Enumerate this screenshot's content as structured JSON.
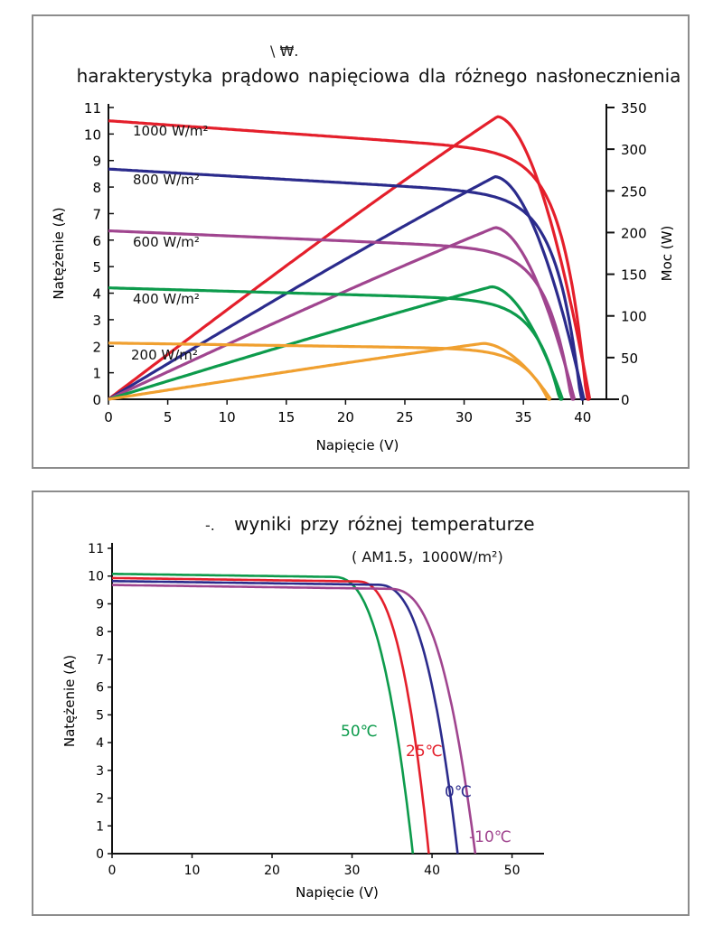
{
  "colors": {
    "red": "#e41f2b",
    "blue": "#2b2b8c",
    "purple": "#a0458f",
    "green": "#0d9b4c",
    "orange": "#f0a030"
  },
  "chart_data": [
    {
      "type": "line",
      "title": "harakterystyka prądowo napięciowa dla różnego nasłonecznienia",
      "title_fragment": "\\ ₩.",
      "xlabel": "Napięcie (V)",
      "ylabel": "Natężenie (A)",
      "y2label": "Moc (W)",
      "xlim": [
        0,
        42
      ],
      "ylim": [
        0,
        11
      ],
      "y2lim": [
        0,
        350
      ],
      "xticks": [
        0,
        5,
        10,
        15,
        20,
        25,
        30,
        35,
        40
      ],
      "yticks": [
        0,
        1,
        2,
        3,
        4,
        5,
        6,
        7,
        8,
        9,
        10,
        11
      ],
      "y2ticks": [
        0,
        50,
        100,
        150,
        200,
        250,
        300,
        350
      ],
      "series": [
        {
          "name": "1000 W/m²",
          "color": "red",
          "isc": 10.5,
          "voc": 40.6,
          "pmax": 339,
          "vmp": 32.8
        },
        {
          "name": "800 W/m²",
          "color": "blue",
          "isc": 8.68,
          "voc": 40.1,
          "pmax": 267,
          "vmp": 32.6
        },
        {
          "name": "600 W/m²",
          "color": "purple",
          "isc": 6.35,
          "voc": 39.3,
          "pmax": 206,
          "vmp": 32.6
        },
        {
          "name": "400 W/m²",
          "color": "green",
          "isc": 4.2,
          "voc": 38.3,
          "pmax": 135,
          "vmp": 32.3
        },
        {
          "name": "200 W/m²",
          "color": "orange",
          "isc": 2.12,
          "voc": 37.3,
          "pmax": 67,
          "vmp": 31.6
        }
      ]
    },
    {
      "type": "line",
      "title": "wyniki przy różnej temperaturze",
      "title_fragment": "-.",
      "subtitle": "( AM1.5，1000W/m²)",
      "xlabel": "Napięcie (V)",
      "ylabel": "Natężenie (A)",
      "xlim": [
        0,
        54
      ],
      "ylim": [
        0,
        11
      ],
      "xticks": [
        0,
        10,
        20,
        30,
        40,
        50
      ],
      "yticks": [
        0,
        1,
        2,
        3,
        4,
        5,
        6,
        7,
        8,
        9,
        10,
        11
      ],
      "series": [
        {
          "name": "50℃",
          "color": "green",
          "isc": 10.08,
          "voc": 37.6,
          "knee": 27.5
        },
        {
          "name": "25℃",
          "color": "red",
          "isc": 9.93,
          "voc": 39.6,
          "knee": 30.5
        },
        {
          "name": "0℃",
          "color": "blue",
          "isc": 9.82,
          "voc": 43.2,
          "knee": 33.0
        },
        {
          "name": "-10℃",
          "color": "purple",
          "isc": 9.68,
          "voc": 45.4,
          "knee": 34.5
        }
      ]
    }
  ]
}
